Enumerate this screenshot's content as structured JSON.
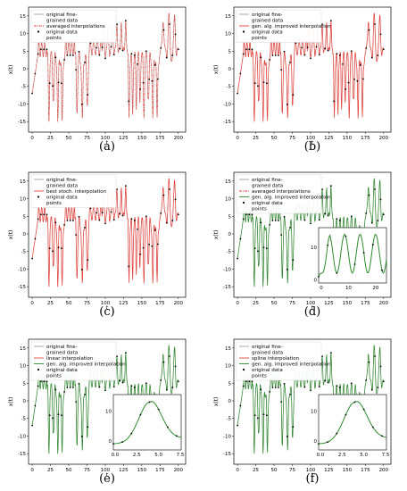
{
  "chart_data": [
    {
      "type": "line",
      "panel_label": "(a)",
      "xlabel": "t",
      "ylabel": "x(t)",
      "xlim": [
        -5,
        210
      ],
      "ylim": [
        -18,
        17.5
      ],
      "xticks": [
        0,
        25,
        50,
        75,
        100,
        125,
        150,
        175,
        200
      ],
      "yticks": [
        -15,
        -10,
        -5,
        0,
        5,
        10,
        15
      ],
      "legend": [
        {
          "label": "original fine-\ngrained data",
          "style": "line",
          "color": "#a0a0a0"
        },
        {
          "label": "averaged interpolations",
          "style": "dashdot",
          "color": "#e8413a"
        },
        {
          "label": "original data\npoints",
          "style": "marker",
          "color": "#000000"
        }
      ],
      "legend_loc": "upper-left",
      "series": [
        {
          "name": "original data points",
          "x_start": 0,
          "x_end": 200,
          "approx_amplitude": 16
        }
      ]
    },
    {
      "type": "line",
      "panel_label": "(b)",
      "xlabel": "t",
      "ylabel": "x(t)",
      "xlim": [
        -5,
        210
      ],
      "ylim": [
        -18,
        17.5
      ],
      "xticks": [
        0,
        25,
        50,
        75,
        100,
        125,
        150,
        175,
        200
      ],
      "yticks": [
        -15,
        -10,
        -5,
        0,
        5,
        10,
        15
      ],
      "legend": [
        {
          "label": "original fine-\ngrained data",
          "style": "line",
          "color": "#a0a0a0"
        },
        {
          "label": "gen. alg. improved interpolation",
          "style": "line",
          "color": "#e8413a"
        },
        {
          "label": "original data\npoints",
          "style": "marker",
          "color": "#000000"
        }
      ],
      "legend_loc": "upper-left"
    },
    {
      "type": "line",
      "panel_label": "(c)",
      "xlabel": "t",
      "ylabel": "x(t)",
      "xlim": [
        -5,
        210
      ],
      "ylim": [
        -18,
        17.5
      ],
      "xticks": [
        0,
        25,
        50,
        75,
        100,
        125,
        150,
        175,
        200
      ],
      "yticks": [
        -15,
        -10,
        -5,
        0,
        5,
        10,
        15
      ],
      "legend": [
        {
          "label": "original fine-\ngrained data",
          "style": "line",
          "color": "#a0a0a0"
        },
        {
          "label": "best stoch. interpolation",
          "style": "line",
          "color": "#e8413a"
        },
        {
          "label": "original data\npoints",
          "style": "marker",
          "color": "#000000"
        }
      ],
      "legend_loc": "upper-left"
    },
    {
      "type": "line",
      "panel_label": "(d)",
      "xlabel": "t",
      "ylabel": "x(t)",
      "xlim": [
        -5,
        210
      ],
      "ylim": [
        -18,
        17.5
      ],
      "xticks": [
        0,
        25,
        50,
        75,
        100,
        125,
        150,
        175,
        200
      ],
      "yticks": [
        -15,
        -10,
        -5,
        0,
        5,
        10,
        15
      ],
      "legend": [
        {
          "label": "original fine-\ngrained data",
          "style": "line",
          "color": "#a0a0a0"
        },
        {
          "label": "averaged interpolations",
          "style": "dashdot",
          "color": "#e8413a"
        },
        {
          "label": "gen. alg. improved interpolation",
          "style": "line",
          "color": "#2e8b2e"
        },
        {
          "label": "original data\npoints",
          "style": "marker",
          "color": "#000000"
        }
      ],
      "legend_loc": "upper-left",
      "inset": {
        "xlim": [
          -1,
          24
        ],
        "ylim": [
          -1,
          16
        ],
        "xticks": [
          0,
          10,
          20
        ],
        "yticks": [
          0,
          10
        ]
      }
    },
    {
      "type": "line",
      "panel_label": "(e)",
      "xlabel": "t",
      "ylabel": "x(t)",
      "xlim": [
        -5,
        210
      ],
      "ylim": [
        -18,
        17.5
      ],
      "xticks": [
        0,
        25,
        50,
        75,
        100,
        125,
        150,
        175,
        200
      ],
      "yticks": [
        -15,
        -10,
        -5,
        0,
        5,
        10,
        15
      ],
      "legend": [
        {
          "label": "original fine-\ngrained data",
          "style": "line",
          "color": "#a0a0a0"
        },
        {
          "label": "linear interpolation",
          "style": "line",
          "color": "#e8413a"
        },
        {
          "label": "gen. alg. improved interpolation",
          "style": "line",
          "color": "#2e8b2e"
        },
        {
          "label": "original data\npoints",
          "style": "marker",
          "color": "#000000"
        }
      ],
      "legend_loc": "upper-left",
      "inset": {
        "xlim": [
          -0.2,
          7.6
        ],
        "ylim": [
          -3,
          15.5
        ],
        "xticks": [
          0.0,
          2.5,
          5.0,
          7.5
        ],
        "yticks": [
          0,
          10
        ]
      }
    },
    {
      "type": "line",
      "panel_label": "(f)",
      "xlabel": "t",
      "ylabel": "x(t)",
      "xlim": [
        -5,
        210
      ],
      "ylim": [
        -18,
        17.5
      ],
      "xticks": [
        0,
        25,
        50,
        75,
        100,
        125,
        150,
        175,
        200
      ],
      "yticks": [
        -15,
        -10,
        -5,
        0,
        5,
        10,
        15
      ],
      "legend": [
        {
          "label": "original fine-\ngrained data",
          "style": "line",
          "color": "#a0a0a0"
        },
        {
          "label": "spline interpolation",
          "style": "line",
          "color": "#e8413a"
        },
        {
          "label": "gen. alg. improved interpolation",
          "style": "line",
          "color": "#2e8b2e"
        },
        {
          "label": "original data\npoints",
          "style": "marker",
          "color": "#000000"
        }
      ],
      "legend_loc": "upper-left",
      "inset": {
        "xlim": [
          -0.2,
          7.6
        ],
        "ylim": [
          -3,
          15.5
        ],
        "xticks": [
          0.0,
          2.5,
          5.0,
          7.5
        ],
        "yticks": [
          0,
          10
        ]
      }
    }
  ]
}
